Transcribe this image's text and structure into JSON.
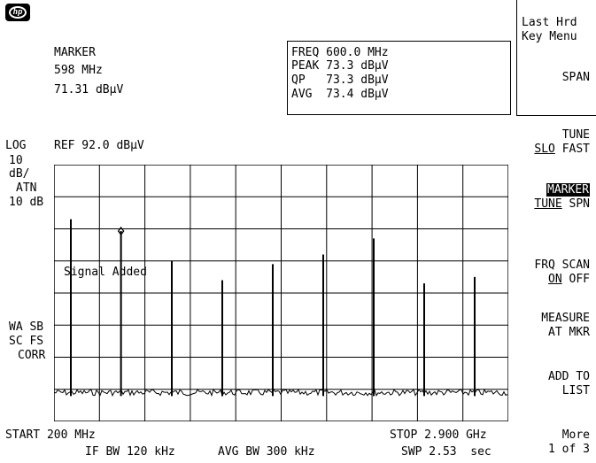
{
  "logo": "hp",
  "marker": {
    "title": "MARKER",
    "freq": "598 MHz",
    "amp": "71.31 dBµV"
  },
  "readout": {
    "freq": "FREQ 600.0 MHz",
    "peak": "PEAK 73.3 dBµV",
    "qp": "QP   73.3 dBµV",
    "avg": "AVG  73.4 dBµV"
  },
  "scale": {
    "log": "LOG",
    "ref": "REF 92.0 dBµV",
    "div_value": "10",
    "div_unit": "dB/",
    "atn": "ATN",
    "atn_value": "10 dB",
    "left_a": "WA SB",
    "left_b": "SC FS",
    "left_c": "CORR"
  },
  "annotation": "Signal Added",
  "footer": {
    "start": "START 200 MHz",
    "stop": "STOP 2.900 GHz",
    "ifbw": "IF BW 120 kHz",
    "avgbw": "AVG BW 300 kHz",
    "swp": "SWP 2.53  sec"
  },
  "softkeys": {
    "last_hrd_1": "Last Hrd",
    "last_hrd_2": "Key Menu",
    "span": "SPAN",
    "tune_1": "TUNE",
    "tune_slo": "SLO",
    "tune_fast": "FAST",
    "marker_1": "MARKER",
    "marker_tune": "TUNE",
    "marker_spn": "SPN",
    "frq_1": "FRQ SCAN",
    "frq_on": "ON",
    "frq_off": "OFF",
    "measure_1": "MEASURE",
    "measure_2": "AT MKR",
    "add_1": "ADD TO",
    "add_2": "LIST",
    "more_1": "More",
    "more_2": "1 of 3"
  },
  "chart_data": {
    "type": "line",
    "title": "",
    "x_start_mhz": 200,
    "x_stop_mhz": 2900,
    "y_ref_dbuv": 92.0,
    "y_div_db": 10,
    "divisions_x": 10,
    "divisions_y": 8,
    "noise_floor_dbuv": 21,
    "peaks": [
      {
        "freq_mhz": 300,
        "level_dbuv": 75
      },
      {
        "freq_mhz": 598,
        "level_dbuv": 71.31
      },
      {
        "freq_mhz": 900,
        "level_dbuv": 62
      },
      {
        "freq_mhz": 1200,
        "level_dbuv": 56
      },
      {
        "freq_mhz": 1500,
        "level_dbuv": 61
      },
      {
        "freq_mhz": 1800,
        "level_dbuv": 64
      },
      {
        "freq_mhz": 2100,
        "level_dbuv": 69
      },
      {
        "freq_mhz": 2400,
        "level_dbuv": 55
      },
      {
        "freq_mhz": 2700,
        "level_dbuv": 57
      }
    ],
    "marker_freq_mhz": 598,
    "marker_level_dbuv": 71.31
  }
}
